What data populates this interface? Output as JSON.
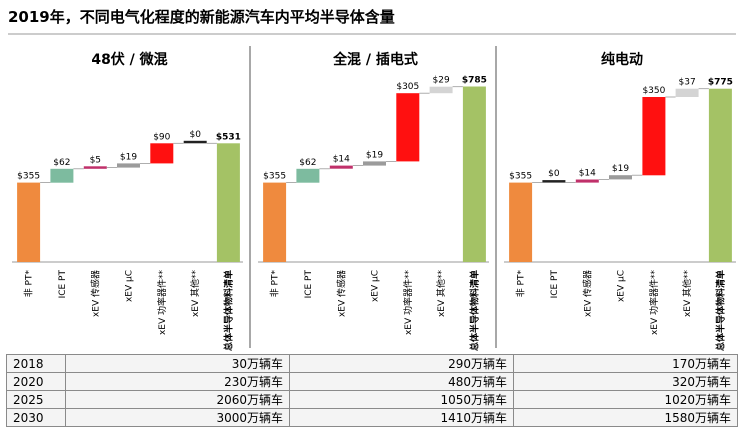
{
  "title": "2019年，不同电气化程度的新能源汽车内平均半导体含量",
  "colors": {
    "orange": "#ef8a3e",
    "teal": "#7dbb9f",
    "pink": "#c0306a",
    "gray": "#9b9b9b",
    "red": "#ff1010",
    "lightgray": "#d4d4d4",
    "olive": "#a4c265",
    "black": "#222222",
    "axis": "#9a9a9a",
    "divider": "#8c8c8c"
  },
  "chart_data": [
    {
      "type": "bar",
      "title": "48伏 / 微混",
      "categories": [
        "非 PT*",
        "ICE PT",
        "xEV 传感器",
        "xEV µC",
        "xEV 功率器件**",
        "xEV 其他**",
        "总体半导体物料清单"
      ],
      "values": [
        355,
        62,
        5,
        19,
        90,
        0,
        531
      ],
      "labels": [
        "$355",
        "$62",
        "$5",
        "$19",
        "$90",
        "$0",
        "$531"
      ],
      "bar_colors": [
        "orange",
        "teal",
        "pink",
        "gray",
        "red",
        "black",
        "olive"
      ]
    },
    {
      "type": "bar",
      "title": "全混 / 插电式",
      "categories": [
        "非 PT*",
        "ICE PT",
        "xEV 传感器",
        "xEV µC",
        "xEV 功率器件**",
        "xEV 其他**",
        "总体半导体物料清单"
      ],
      "values": [
        355,
        62,
        14,
        19,
        305,
        29,
        785
      ],
      "labels": [
        "$355",
        "$62",
        "$14",
        "$19",
        "$305",
        "$29",
        "$785"
      ],
      "bar_colors": [
        "orange",
        "teal",
        "pink",
        "gray",
        "red",
        "lightgray",
        "olive"
      ]
    },
    {
      "type": "bar",
      "title": "纯电动",
      "categories": [
        "非 PT*",
        "ICE PT",
        "xEV 传感器",
        "xEV µC",
        "xEV 功率器件**",
        "xEV 其他**",
        "总体半导体物料清单"
      ],
      "values": [
        355,
        0,
        14,
        19,
        350,
        37,
        775
      ],
      "labels": [
        "$355",
        "$0",
        "$14",
        "$19",
        "$350",
        "$37",
        "$775"
      ],
      "bar_colors": [
        "orange",
        "black",
        "pink",
        "gray",
        "red",
        "lightgray",
        "olive"
      ]
    }
  ],
  "table": {
    "rows": [
      {
        "year": "2018",
        "values": [
          "30万辆车",
          "290万辆车",
          "170万辆车"
        ]
      },
      {
        "year": "2020",
        "values": [
          "230万辆车",
          "480万辆车",
          "320万辆车"
        ]
      },
      {
        "year": "2025",
        "values": [
          "2060万辆车",
          "1050万辆车",
          "1020万辆车"
        ]
      },
      {
        "year": "2030",
        "values": [
          "3000万辆车",
          "1410万辆车",
          "1580万辆车"
        ]
      }
    ]
  }
}
